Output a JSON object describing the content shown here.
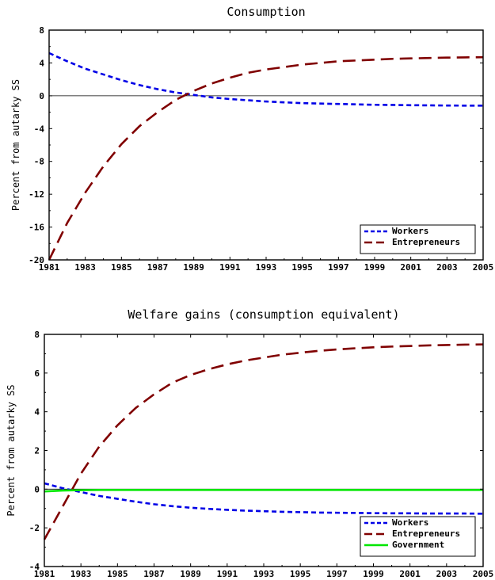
{
  "chart_data": [
    {
      "type": "line",
      "title": "Consumption",
      "xlabel": "",
      "ylabel": "Percent from autarky SS",
      "xlim": [
        1981,
        2005
      ],
      "ylim": [
        -20,
        8
      ],
      "xticks": [
        1981,
        1983,
        1985,
        1987,
        1989,
        1991,
        1993,
        1995,
        1997,
        1999,
        2001,
        2003,
        2005
      ],
      "yticks": [
        8,
        4,
        0,
        -4,
        -8,
        -12,
        -16,
        -20
      ],
      "zero_line": true,
      "legend_position": "bottom-right",
      "x": [
        1981,
        1982,
        1983,
        1984,
        1985,
        1986,
        1987,
        1988,
        1989,
        1990,
        1991,
        1992,
        1993,
        1994,
        1995,
        1996,
        1997,
        1998,
        1999,
        2000,
        2001,
        2002,
        2003,
        2004,
        2005
      ],
      "series": [
        {
          "name": "Workers",
          "color": "#0000e6",
          "dash": "short",
          "values": [
            5.2,
            4.2,
            3.3,
            2.6,
            1.9,
            1.3,
            0.8,
            0.4,
            0.1,
            -0.2,
            -0.4,
            -0.55,
            -0.7,
            -0.8,
            -0.9,
            -0.95,
            -1.0,
            -1.05,
            -1.1,
            -1.12,
            -1.15,
            -1.17,
            -1.19,
            -1.2,
            -1.2
          ]
        },
        {
          "name": "Entrepreneurs",
          "color": "#800000",
          "dash": "long",
          "values": [
            -20.0,
            -15.5,
            -11.8,
            -8.6,
            -5.9,
            -3.7,
            -2.0,
            -0.5,
            0.6,
            1.5,
            2.2,
            2.8,
            3.2,
            3.5,
            3.8,
            4.0,
            4.2,
            4.3,
            4.4,
            4.5,
            4.55,
            4.6,
            4.65,
            4.68,
            4.7
          ]
        }
      ]
    },
    {
      "type": "line",
      "title": "Welfare gains (consumption equivalent)",
      "xlabel": "",
      "ylabel": "Percent from autarky SS",
      "xlim": [
        1981,
        2005
      ],
      "ylim": [
        -4,
        8
      ],
      "xticks": [
        1981,
        1983,
        1985,
        1987,
        1989,
        1991,
        1993,
        1995,
        1997,
        1999,
        2001,
        2003,
        2005
      ],
      "yticks": [
        8,
        6,
        4,
        2,
        0,
        -2,
        -4
      ],
      "zero_line": true,
      "legend_position": "bottom-right",
      "x": [
        1981,
        1982,
        1983,
        1984,
        1985,
        1986,
        1987,
        1988,
        1989,
        1990,
        1991,
        1992,
        1993,
        1994,
        1995,
        1996,
        1997,
        1998,
        1999,
        2000,
        2001,
        2002,
        2003,
        2004,
        2005
      ],
      "series": [
        {
          "name": "Workers",
          "color": "#0000e6",
          "dash": "short",
          "values": [
            0.3,
            0.05,
            -0.15,
            -0.35,
            -0.5,
            -0.65,
            -0.78,
            -0.88,
            -0.96,
            -1.02,
            -1.07,
            -1.11,
            -1.14,
            -1.17,
            -1.19,
            -1.21,
            -1.22,
            -1.23,
            -1.24,
            -1.25,
            -1.25,
            -1.26,
            -1.26,
            -1.26,
            -1.27
          ]
        },
        {
          "name": "Entrepreneurs",
          "color": "#800000",
          "dash": "long",
          "values": [
            -2.6,
            -0.9,
            0.8,
            2.2,
            3.3,
            4.2,
            4.9,
            5.5,
            5.9,
            6.2,
            6.45,
            6.65,
            6.8,
            6.95,
            7.05,
            7.15,
            7.22,
            7.28,
            7.33,
            7.37,
            7.4,
            7.43,
            7.45,
            7.47,
            7.48
          ]
        },
        {
          "name": "Government",
          "color": "#00e600",
          "dash": "solid",
          "values": [
            -0.12,
            -0.07,
            -0.05,
            -0.04,
            -0.04,
            -0.04,
            -0.04,
            -0.04,
            -0.04,
            -0.04,
            -0.04,
            -0.04,
            -0.04,
            -0.04,
            -0.04,
            -0.04,
            -0.04,
            -0.04,
            -0.04,
            -0.04,
            -0.04,
            -0.04,
            -0.04,
            -0.04,
            -0.04
          ]
        }
      ]
    }
  ]
}
